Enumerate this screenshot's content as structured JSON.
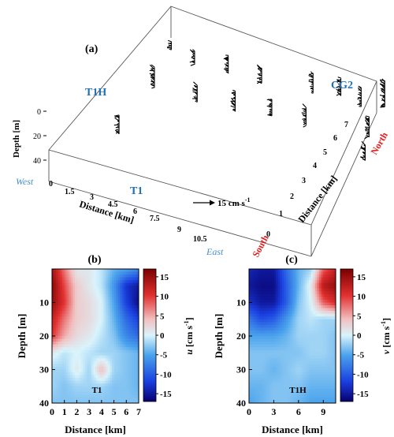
{
  "panel_a": {
    "label": "(a)",
    "depth_label": "Depth [m]",
    "depth_ticks": [
      "0",
      "20",
      "40"
    ],
    "x_label": "Distance [km]",
    "x_ticks": [
      "0",
      "1.5",
      "3",
      "4.5",
      "6",
      "7.5",
      "9",
      "10.5"
    ],
    "y_label": "Distance [km]",
    "y_ticks": [
      "0",
      "1",
      "2",
      "3",
      "4",
      "5",
      "6",
      "7"
    ],
    "west": "West",
    "east": "East",
    "south": "South",
    "north": "North",
    "sites": [
      "T1H",
      "T1",
      "CG2"
    ],
    "scale_text": "15 cm s",
    "scale_sup": "-1",
    "colors": {
      "site": "#1f6fb5",
      "westeast": "#4a90c8",
      "southnorth": "#e02020"
    }
  },
  "panel_b": {
    "label": "(b)",
    "tag": "T1",
    "xlabel": "Distance [km]",
    "ylabel": "Depth [m]",
    "xticks": [
      "0",
      "1",
      "2",
      "3",
      "4",
      "5",
      "6",
      "7"
    ],
    "yticks": [
      "10",
      "20",
      "30",
      "40"
    ],
    "cbar_var": "u",
    "cbar_unit": "[cm s",
    "cbar_sup": "-1",
    "cbar_close": "]",
    "cbar_ticks": [
      "15",
      "10",
      "5",
      "0",
      "-5",
      "-10",
      "-15"
    ]
  },
  "panel_c": {
    "label": "(c)",
    "tag": "T1H",
    "xlabel": "Distance [km]",
    "ylabel": "Depth [m]",
    "xticks": [
      "0",
      "3",
      "6",
      "9"
    ],
    "yticks": [
      "10",
      "20",
      "30",
      "40"
    ],
    "cbar_var": "v",
    "cbar_unit": "[cm s",
    "cbar_sup": "-1",
    "cbar_close": "]",
    "cbar_ticks": [
      "15",
      "10",
      "5",
      "0",
      "-5",
      "-10",
      "-15"
    ]
  },
  "chart_data": [
    {
      "type": "vector",
      "panel": "a",
      "xlabel": "Distance [km]",
      "ylabel": "Distance [km]",
      "zlabel": "Depth [m]",
      "xlim": [
        0,
        12
      ],
      "ylim": [
        0,
        8
      ],
      "zlim": [
        0,
        40
      ],
      "scale_arrow": "15 cm s-1",
      "sites": [
        "T1H",
        "T1",
        "CG2"
      ],
      "profiles": [
        {
          "x": 1.0,
          "y": 6.6,
          "top": 5,
          "bottom": 15
        },
        {
          "x": 2.2,
          "y": 6.4,
          "top": 3,
          "bottom": 20
        },
        {
          "x": 3.6,
          "y": 6.6,
          "top": 2,
          "bottom": 25
        },
        {
          "x": 5.2,
          "y": 6.5,
          "top": 3,
          "bottom": 22
        },
        {
          "x": 7.2,
          "y": 7.0,
          "top": 5,
          "bottom": 30
        },
        {
          "x": 8.4,
          "y": 7.1,
          "top": 4,
          "bottom": 26
        },
        {
          "x": 10.2,
          "y": 7.4,
          "top": 0,
          "bottom": 33
        },
        {
          "x": 9.4,
          "y": 7.0,
          "top": 6,
          "bottom": 30
        },
        {
          "x": 1.2,
          "y": 5.2,
          "top": 4,
          "bottom": 30
        },
        {
          "x": 3.3,
          "y": 5.0,
          "top": 6,
          "bottom": 27
        },
        {
          "x": 4.9,
          "y": 5.2,
          "top": 5,
          "bottom": 31
        },
        {
          "x": 6.5,
          "y": 5.3,
          "top": 5,
          "bottom": 26
        },
        {
          "x": 8.0,
          "y": 5.4,
          "top": 6,
          "bottom": 28
        },
        {
          "x": 10.6,
          "y": 5.8,
          "top": 6,
          "bottom": 32
        },
        {
          "x": 1.4,
          "y": 2.6,
          "top": 4,
          "bottom": 28
        },
        {
          "x": 11.4,
          "y": 4.4,
          "top": 4,
          "bottom": 23
        }
      ]
    },
    {
      "type": "heatmap",
      "panel": "b",
      "variable": "u",
      "unit": "cm s-1",
      "x": [
        0,
        1,
        2,
        3,
        4,
        5,
        6,
        7
      ],
      "y": [
        0,
        5,
        10,
        15,
        20,
        25,
        30,
        35,
        40
      ],
      "xlim": [
        0,
        7
      ],
      "ylim": [
        0,
        40
      ],
      "clim": [
        -17,
        17
      ],
      "z": [
        [
          14,
          7,
          1,
          1,
          -1,
          -4,
          -5,
          -7
        ],
        [
          16,
          9,
          3,
          1,
          -1,
          -6,
          -13,
          -15
        ],
        [
          15,
          10,
          3,
          2,
          0,
          -5,
          -12,
          -16
        ],
        [
          12,
          7,
          3,
          2,
          0,
          -4,
          -9,
          -12
        ],
        [
          10,
          5,
          2,
          1,
          -1,
          -3,
          -7,
          -9
        ],
        [
          1,
          -1,
          0,
          -1,
          -2,
          -2,
          -3,
          -4
        ],
        [
          -2,
          -2,
          1,
          -2,
          4,
          -2,
          -3,
          -4
        ],
        [
          -2,
          -3,
          -2,
          -2,
          -2,
          -3,
          -3,
          -4
        ],
        [
          -3,
          -3,
          -3,
          -3,
          -3,
          -3,
          -3,
          -3
        ]
      ]
    },
    {
      "type": "heatmap",
      "panel": "c",
      "variable": "v",
      "unit": "cm s-1",
      "x": [
        0,
        1.5,
        3,
        4.5,
        6,
        7.5,
        9,
        10.5
      ],
      "y": [
        0,
        5,
        10,
        15,
        20,
        25,
        30,
        35,
        40
      ],
      "xlim": [
        0,
        10.5
      ],
      "ylim": [
        0,
        40
      ],
      "clim": [
        -17,
        17
      ],
      "z": [
        [
          -14,
          -15,
          -15,
          -9,
          -4,
          -2,
          8,
          12
        ],
        [
          -15,
          -16,
          -16,
          -10,
          -4,
          1,
          13,
          15
        ],
        [
          -13,
          -15,
          -15,
          -10,
          -3,
          0,
          8,
          11
        ],
        [
          -8,
          -11,
          -10,
          -6,
          -2,
          -1,
          -2,
          -2
        ],
        [
          -5,
          -5,
          -5,
          -4,
          -2,
          -2,
          -2,
          -3
        ],
        [
          -3,
          -3,
          -3,
          -3,
          -3,
          -2,
          -2,
          -3
        ],
        [
          -3,
          -3,
          -4,
          -3,
          -2,
          -3,
          -3,
          -3
        ],
        [
          -4,
          -4,
          -3,
          -3,
          -3,
          -4,
          -4,
          -4
        ],
        [
          -5,
          -4,
          -3,
          -3,
          -4,
          -5,
          -5,
          -5
        ]
      ]
    }
  ]
}
